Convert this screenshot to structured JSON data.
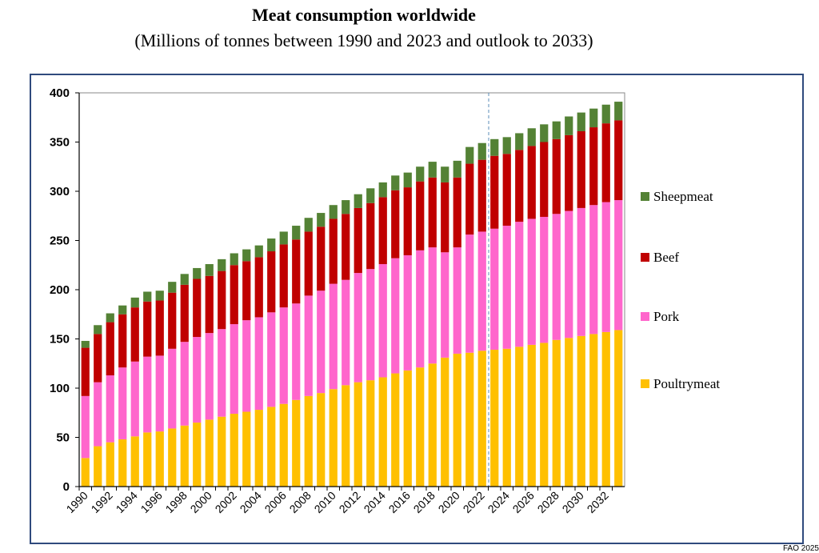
{
  "chart_data": {
    "type": "bar",
    "stacked": true,
    "title": "Meat consumption worldwide",
    "subtitle": "(Millions of tonnes between 1990 and 2023 and outlook to 2033)",
    "x": [
      1990,
      1991,
      1992,
      1993,
      1994,
      1995,
      1996,
      1997,
      1998,
      1999,
      2000,
      2001,
      2002,
      2003,
      2004,
      2005,
      2006,
      2007,
      2008,
      2009,
      2010,
      2011,
      2012,
      2013,
      2014,
      2015,
      2016,
      2017,
      2018,
      2019,
      2020,
      2021,
      2022,
      2023,
      2024,
      2025,
      2026,
      2027,
      2028,
      2029,
      2030,
      2031,
      2032,
      2033
    ],
    "x_tick_labels": [
      "1990",
      "1992",
      "1994",
      "1996",
      "1998",
      "2000",
      "2002",
      "2004",
      "2006",
      "2008",
      "2010",
      "2012",
      "2014",
      "2016",
      "2018",
      "2020",
      "2022",
      "2024",
      "2026",
      "2028",
      "2030",
      "2032"
    ],
    "y_ticks": [
      0,
      50,
      100,
      150,
      200,
      250,
      300,
      350,
      400
    ],
    "ylim": [
      0,
      400
    ],
    "grid": false,
    "legend_position": "right",
    "divider_after": 2022,
    "series": [
      {
        "name": "Poultrymeat",
        "color": "#FFC000",
        "values": [
          29,
          41,
          45,
          48,
          51,
          55,
          56,
          59,
          62,
          65,
          68,
          71,
          74,
          76,
          78,
          81,
          84,
          88,
          92,
          95,
          99,
          103,
          106,
          108,
          111,
          115,
          118,
          121,
          125,
          131,
          135,
          136,
          138,
          139,
          140,
          142,
          144,
          146,
          149,
          151,
          153,
          155,
          157,
          159
        ]
      },
      {
        "name": "Pork",
        "color": "#FF66CC",
        "values": [
          63,
          65,
          68,
          73,
          76,
          77,
          77,
          81,
          85,
          87,
          88,
          89,
          91,
          93,
          94,
          96,
          98,
          98,
          102,
          104,
          107,
          107,
          111,
          113,
          115,
          117,
          117,
          119,
          118,
          107,
          108,
          120,
          121,
          123,
          125,
          127,
          128,
          128,
          128,
          129,
          130,
          131,
          132,
          132
        ]
      },
      {
        "name": "Beef",
        "color": "#C00000",
        "values": [
          49,
          49,
          54,
          54,
          55,
          56,
          56,
          57,
          58,
          59,
          58,
          59,
          60,
          60,
          61,
          62,
          64,
          65,
          65,
          65,
          66,
          67,
          66,
          67,
          68,
          69,
          69,
          70,
          71,
          71,
          71,
          72,
          73,
          74,
          73,
          73,
          74,
          76,
          76,
          77,
          78,
          79,
          80,
          81
        ]
      },
      {
        "name": "Sheepmeat",
        "color": "#548235",
        "values": [
          7,
          9,
          9,
          9,
          10,
          10,
          10,
          11,
          11,
          11,
          12,
          12,
          12,
          12,
          12,
          13,
          13,
          14,
          14,
          14,
          14,
          14,
          14,
          15,
          15,
          15,
          15,
          15,
          16,
          16,
          17,
          17,
          17,
          17,
          17,
          17,
          18,
          18,
          18,
          19,
          19,
          19,
          19,
          19
        ]
      }
    ]
  },
  "footer_text": "FAO 2025"
}
